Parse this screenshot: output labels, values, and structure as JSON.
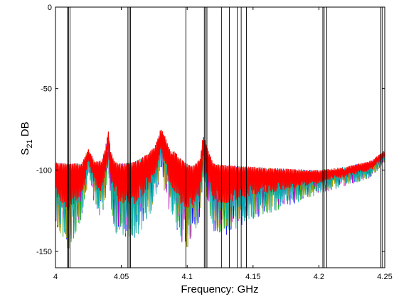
{
  "chart_data": {
    "type": "line",
    "title": "",
    "xlabel": "Frequency: GHz",
    "ylabel_main": "S",
    "ylabel_sub": "21",
    "ylabel_rest": " DB",
    "xlim": [
      4.0,
      4.25
    ],
    "ylim": [
      -160,
      0
    ],
    "x_ticks": [
      {
        "value": 4.0,
        "label": "4"
      },
      {
        "value": 4.05,
        "label": "4.05"
      },
      {
        "value": 4.1,
        "label": "4.1"
      },
      {
        "value": 4.15,
        "label": "4.15"
      },
      {
        "value": 4.2,
        "label": "4.2"
      },
      {
        "value": 4.25,
        "label": "4.25"
      }
    ],
    "y_ticks": [
      {
        "value": 0,
        "label": "0"
      },
      {
        "value": -50,
        "label": "-50"
      },
      {
        "value": -100,
        "label": "-100"
      },
      {
        "value": -150,
        "label": "-150"
      }
    ],
    "grid": false,
    "legend": "none",
    "vertical_markers_ghz": [
      4.009,
      4.01,
      4.011,
      4.055,
      4.056,
      4.057,
      4.099,
      4.113,
      4.114,
      4.115,
      4.126,
      4.132,
      4.138,
      4.141,
      4.145,
      4.203,
      4.204,
      4.206,
      4.247,
      4.248
    ],
    "envelope": {
      "x": [
        4.0,
        4.01,
        4.02,
        4.023,
        4.025,
        4.03,
        4.035,
        4.038,
        4.04,
        4.042,
        4.045,
        4.05,
        4.06,
        4.07,
        4.075,
        4.078,
        4.08,
        4.083,
        4.086,
        4.088,
        4.09,
        4.095,
        4.1,
        4.105,
        4.11,
        4.112,
        4.115,
        4.12,
        4.13,
        4.15,
        4.17,
        4.2,
        4.22,
        4.24,
        4.25
      ],
      "upper": [
        -95,
        -96,
        -96,
        -90,
        -87,
        -95,
        -94,
        -86,
        -75,
        -88,
        -95,
        -96,
        -95,
        -90,
        -86,
        -80,
        -74,
        -79,
        -86,
        -89,
        -88,
        -93,
        -96,
        -97,
        -93,
        -78,
        -86,
        -96,
        -97,
        -98,
        -99,
        -100,
        -98,
        -94,
        -88
      ],
      "lower": [
        -133,
        -150,
        -130,
        -120,
        -100,
        -125,
        -130,
        -118,
        -100,
        -122,
        -140,
        -140,
        -143,
        -132,
        -120,
        -110,
        -98,
        -115,
        -125,
        -130,
        -133,
        -145,
        -148,
        -142,
        -130,
        -105,
        -118,
        -140,
        -140,
        -130,
        -125,
        -115,
        -110,
        -105,
        -95
      ]
    },
    "series": [
      {
        "color": "#ff0000"
      },
      {
        "color": "#0000ff"
      },
      {
        "color": "#00a000"
      },
      {
        "color": "#c000c0"
      },
      {
        "color": "#a0a000"
      },
      {
        "color": "#00b0b0"
      }
    ]
  }
}
